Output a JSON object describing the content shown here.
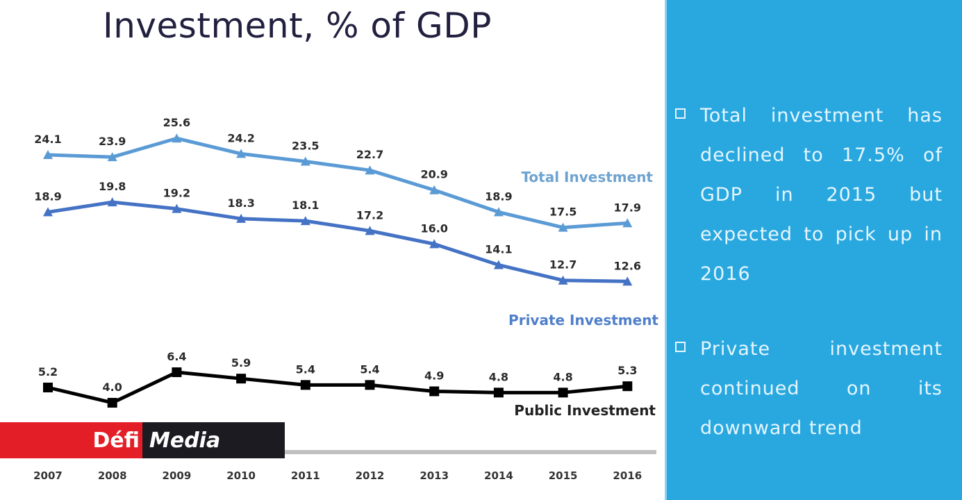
{
  "chart_data": {
    "type": "line",
    "title": "Investment, % of GDP",
    "xlabel": "",
    "ylabel": "",
    "categories": [
      "2007",
      "2008",
      "2009",
      "2010",
      "2011",
      "2012",
      "2013",
      "2014",
      "2015",
      "2016"
    ],
    "series": [
      {
        "name": "Total Investment",
        "values": [
          24.1,
          23.9,
          25.6,
          24.2,
          23.5,
          22.7,
          20.9,
          18.9,
          17.5,
          17.9
        ],
        "labels": [
          "24.1",
          "23.9",
          "25.6",
          "24.2",
          "23.5",
          "22.7",
          "20.9",
          "18.9",
          "17.5",
          "17.9"
        ],
        "color": "#5b9bd5",
        "label_color": "#6fa3cf"
      },
      {
        "name": "Private Investment",
        "values": [
          18.9,
          19.8,
          19.2,
          18.3,
          18.1,
          17.2,
          16.0,
          14.1,
          12.7,
          12.6
        ],
        "labels": [
          "18.9",
          "19.8",
          "19.2",
          "18.3",
          "18.1",
          "17.2",
          "16.0",
          "14.1",
          "12.7",
          "12.6"
        ],
        "color": "#4472c4",
        "label_color": "#4f7fc9"
      },
      {
        "name": "Public Investment",
        "values": [
          5.2,
          4.0,
          6.4,
          5.9,
          5.4,
          5.4,
          4.9,
          4.8,
          4.8,
          5.3
        ],
        "labels": [
          "5.2",
          "4.0",
          "6.4",
          "5.9",
          "5.4",
          "5.4",
          "4.9",
          "4.8",
          "4.8",
          "5.3"
        ],
        "color": "#000000",
        "label_color": "#222222"
      }
    ],
    "grid": false,
    "legend": "inline-right",
    "axis_line_color": "#bfbfbf"
  },
  "watermark": {
    "left": "Défi",
    "right": "Media",
    "left_color": "#e41e26",
    "right_color": "#1d1b22"
  },
  "side_panel": {
    "background": "#29a8e0",
    "bullets": [
      {
        "icon": "checkbox-icon",
        "text": "Total investment has declined to 17.5% of GDP in 2015 but expected to pick up in 2016"
      },
      {
        "icon": "checkbox-icon",
        "text": "Private investment continued on its downward trend"
      }
    ]
  }
}
